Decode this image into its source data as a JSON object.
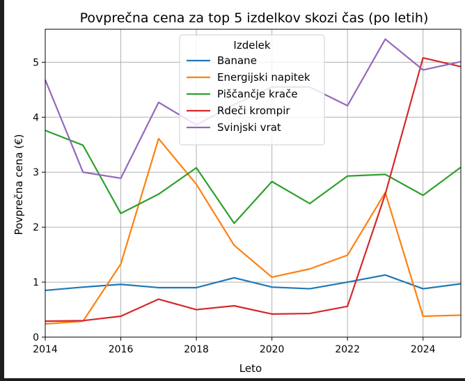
{
  "chart_data": {
    "type": "line",
    "title": "Povprečna cena za top 5 izdelkov skozi čas (po letih)",
    "xlabel": "Leto",
    "ylabel": "Povprečna cena (€)",
    "xlim": [
      2014,
      2025
    ],
    "ylim": [
      0,
      5.6
    ],
    "xticks": [
      2014,
      2016,
      2018,
      2020,
      2022,
      2024
    ],
    "yticks": [
      0,
      1,
      2,
      3,
      4,
      5
    ],
    "grid": true,
    "legend": {
      "title": "Izdelek",
      "placement": "top-center"
    },
    "x": [
      2014,
      2015,
      2016,
      2017,
      2018,
      2019,
      2020,
      2021,
      2022,
      2023,
      2024,
      2025
    ],
    "series": [
      {
        "name": "Banane",
        "color": "#1f77b4",
        "values": [
          0.85,
          0.91,
          0.96,
          0.9,
          0.9,
          1.08,
          0.91,
          0.88,
          1.0,
          1.13,
          0.88,
          0.97
        ]
      },
      {
        "name": "Energijski napitek",
        "color": "#ff7f0e",
        "values": [
          0.24,
          0.29,
          1.33,
          3.61,
          2.78,
          1.67,
          1.09,
          1.24,
          1.49,
          2.63,
          0.38,
          0.4
        ]
      },
      {
        "name": "Piščančje krače",
        "color": "#2ca02c",
        "values": [
          3.76,
          3.49,
          2.25,
          2.6,
          3.08,
          2.07,
          2.83,
          2.43,
          2.93,
          2.96,
          2.58,
          3.09
        ]
      },
      {
        "name": "Rdeči krompir",
        "color": "#d62728",
        "values": [
          0.29,
          0.3,
          0.38,
          0.69,
          0.5,
          0.57,
          0.42,
          0.43,
          0.56,
          2.6,
          5.08,
          4.92
        ]
      },
      {
        "name": "Svinjski vrat",
        "color": "#9467bd",
        "values": [
          4.68,
          3.0,
          2.89,
          4.27,
          3.86,
          4.23,
          4.55,
          4.55,
          4.21,
          5.42,
          4.86,
          5.01
        ]
      }
    ]
  }
}
